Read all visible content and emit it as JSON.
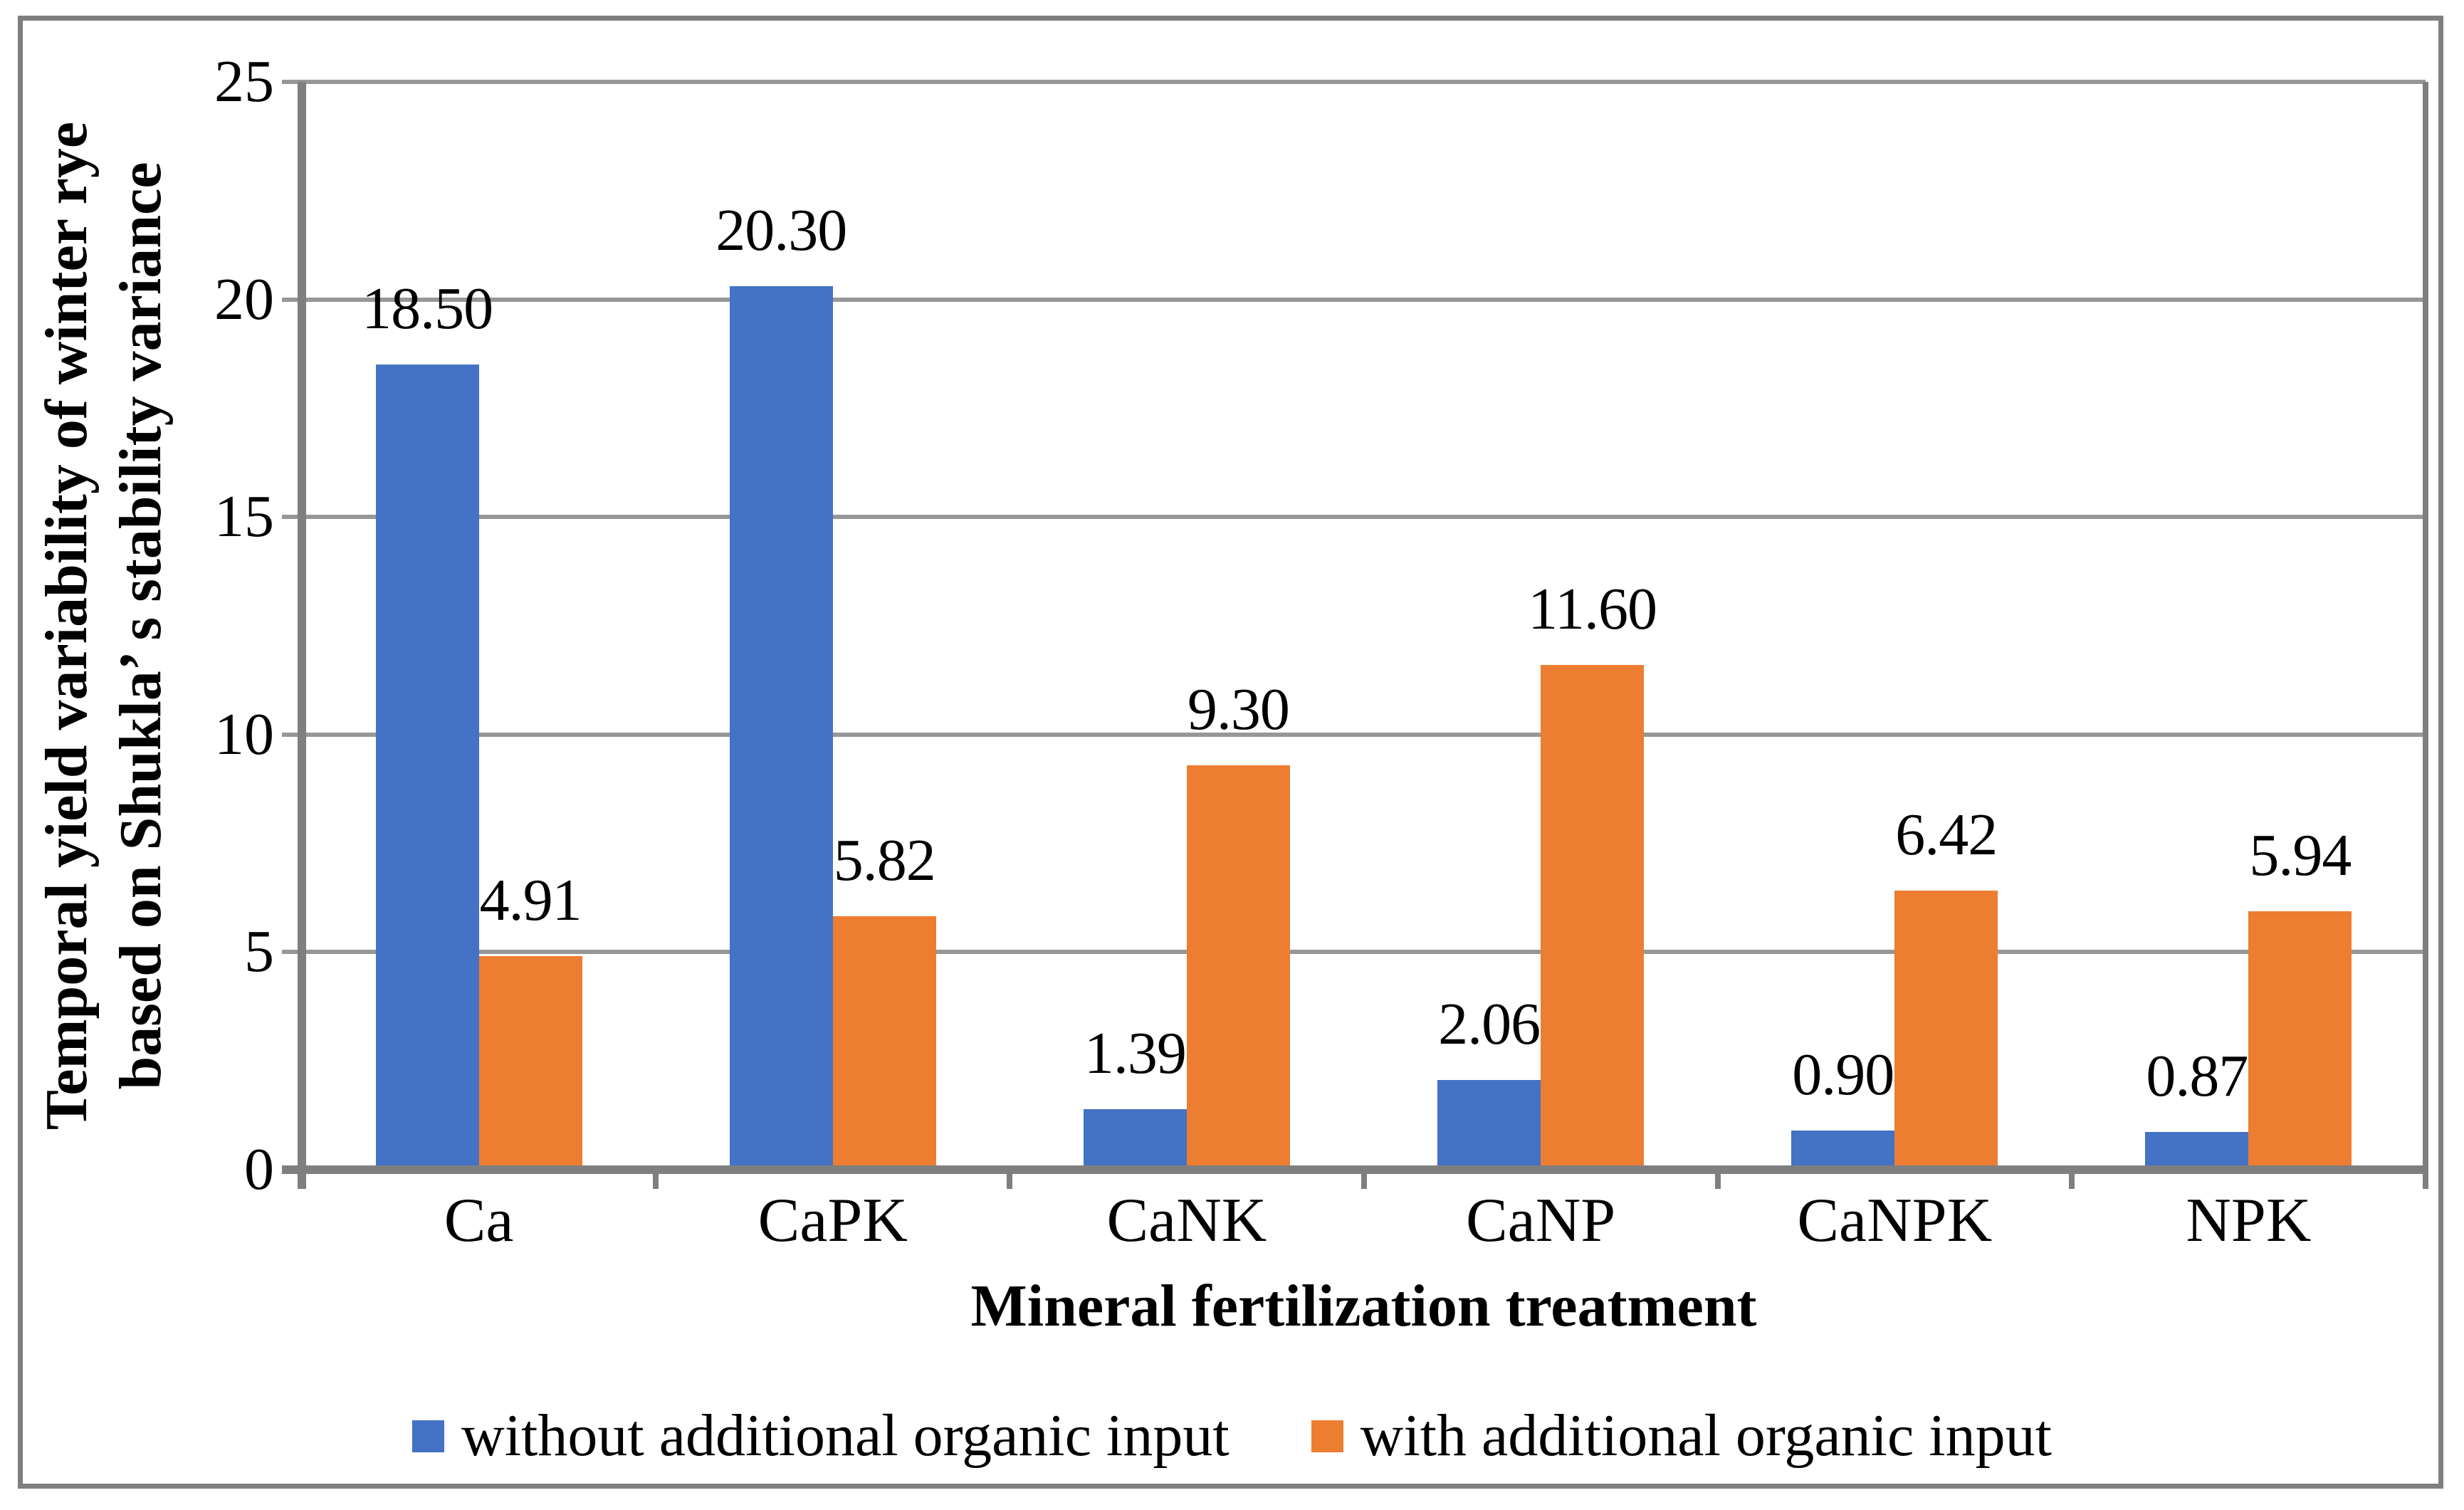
{
  "chart_data": {
    "type": "bar",
    "title": "",
    "categories": [
      "Ca",
      "CaPK",
      "CaNK",
      "CaNP",
      "CaNPK",
      "NPK"
    ],
    "series": [
      {
        "name": "without additional organic input",
        "color": "#4472C4",
        "values": [
          18.5,
          20.3,
          1.39,
          2.06,
          0.9,
          0.87
        ],
        "labels": [
          "18.50",
          "20.30",
          "1.39",
          "2.06",
          "0.90",
          "0.87"
        ]
      },
      {
        "name": "with additional organic input",
        "color": "#ED7D31",
        "values": [
          4.91,
          5.82,
          9.3,
          11.6,
          6.42,
          5.94
        ],
        "labels": [
          "4.91",
          "5.82",
          "9.30",
          "11.60",
          "6.42",
          "5.94"
        ]
      }
    ],
    "xlabel": "Mineral fertilization treatment",
    "ylabel_lines": [
      "Temporal yield variability of winter rye",
      "based on Shukla’ s stability variance"
    ],
    "ylim": [
      0,
      25
    ],
    "yticks": [
      0,
      5,
      10,
      15,
      20,
      25
    ],
    "ytick_labels": [
      "0",
      "5",
      "10",
      "15",
      "20",
      "25"
    ],
    "grid": true,
    "legend_position": "bottom"
  },
  "colors": {
    "gridline": "#979797",
    "axis": "#7f7f7f",
    "figure_border": "#7f7f7f",
    "text": "#000000"
  }
}
